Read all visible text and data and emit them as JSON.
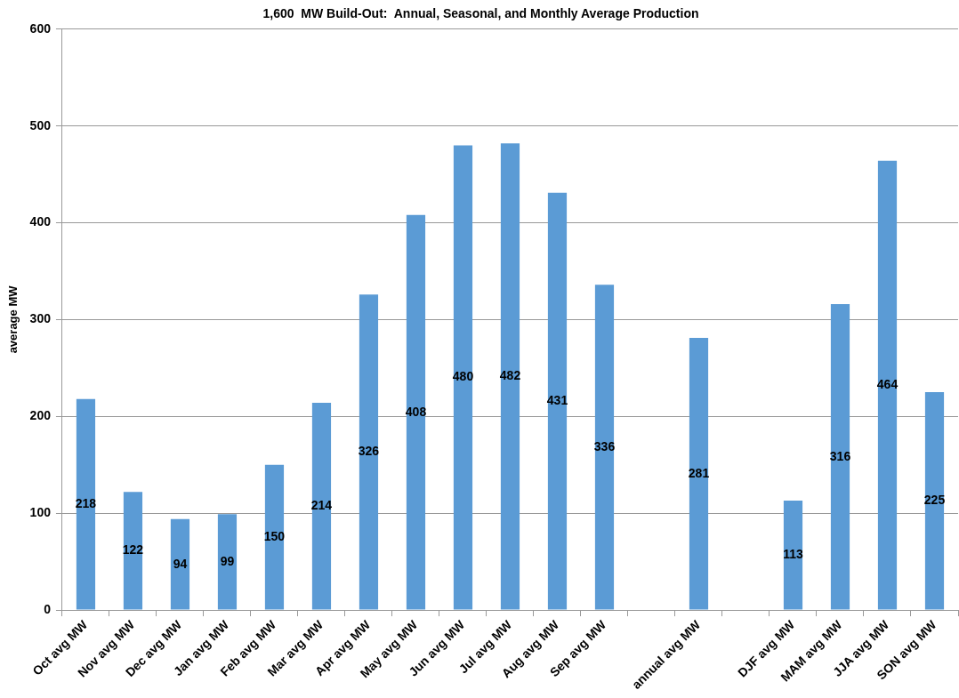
{
  "chart_data": {
    "type": "bar",
    "title": "1,600  MW Build-Out:  Annual, Seasonal, and Monthly Average Production",
    "ylabel": "average MW",
    "categories": [
      "Oct avg MW",
      "Nov avg MW",
      "Dec avg MW",
      "Jan avg MW",
      "Feb avg MW",
      "Mar avg MW",
      "Apr avg MW",
      "May avg MW",
      "Jun avg MW",
      "Jul avg MW",
      "Aug avg MW",
      "Sep avg MW",
      null,
      "annual avg MW",
      null,
      "DJF avg MW",
      "MAM avg MW",
      "JJA avg MW",
      "SON avg MW"
    ],
    "values": [
      218,
      122,
      94,
      99,
      150,
      214,
      326,
      408,
      480,
      482,
      431,
      336,
      null,
      281,
      null,
      113,
      316,
      464,
      225
    ],
    "color": "#5b9bd5",
    "ylim": [
      0,
      600
    ],
    "yticks": [
      0,
      100,
      200,
      300,
      400,
      500,
      600
    ],
    "grid": "y",
    "data_labels": true
  }
}
